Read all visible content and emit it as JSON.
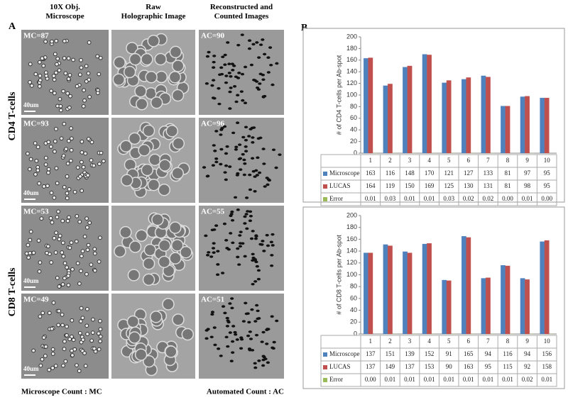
{
  "panel_a": {
    "label": "A",
    "column_headers": [
      "10X Obj.\nMicroscope",
      "Raw\nHolographic Image",
      "Reconstructed and\nCounted Images"
    ],
    "row_labels": [
      "CD4 T-cells",
      "CD8 T-cells"
    ],
    "rows": [
      {
        "microscope": "MC=87",
        "counted": "AC=90",
        "scale": "40um"
      },
      {
        "microscope": "MC=93",
        "counted": "AC=96",
        "scale": "40um"
      },
      {
        "microscope": "MC=53",
        "counted": "AC=55",
        "scale": "40um"
      },
      {
        "microscope": "MC=49",
        "counted": "AC=51",
        "scale": "40um"
      }
    ],
    "footer_left": "Microscope Count : MC",
    "footer_right": "Automated Count : AC"
  },
  "panel_b": {
    "label": "B"
  },
  "chart_data": [
    {
      "type": "bar",
      "ylabel": "# of CD4 T-cells per Ab-spot",
      "categories": [
        "1",
        "2",
        "3",
        "4",
        "5",
        "6",
        "7",
        "8",
        "9",
        "10"
      ],
      "series": [
        {
          "name": "Microscope",
          "color": "#4f81bd",
          "values": [
            163,
            116,
            148,
            170,
            121,
            127,
            133,
            81,
            97,
            95
          ]
        },
        {
          "name": "LUCAS",
          "color": "#c0504d",
          "values": [
            164,
            119,
            150,
            169,
            125,
            130,
            131,
            81,
            98,
            95
          ]
        },
        {
          "name": "Error",
          "color": "#9bbb59",
          "values": [
            0.01,
            0.03,
            0.01,
            0.01,
            0.03,
            0.02,
            0.02,
            0,
            0.01,
            0
          ],
          "value_labels": [
            "0.01",
            "0.03",
            "0.01",
            "0.01",
            "0.03",
            "0.02",
            "0.02",
            "0.00",
            "0.01",
            "0.00"
          ]
        }
      ],
      "ylim": [
        0,
        200
      ],
      "yticks": [
        0,
        20,
        40,
        60,
        80,
        100,
        120,
        140,
        160,
        180,
        200
      ],
      "grid": false
    },
    {
      "type": "bar",
      "ylabel": "# of CD8 T-cells per Ab-spot",
      "categories": [
        "1",
        "2",
        "3",
        "4",
        "5",
        "6",
        "7",
        "8",
        "9",
        "10"
      ],
      "series": [
        {
          "name": "Microscope",
          "color": "#4f81bd",
          "values": [
            137,
            151,
            139,
            152,
            91,
            165,
            94,
            116,
            94,
            156
          ]
        },
        {
          "name": "LUCAS",
          "color": "#c0504d",
          "values": [
            137,
            149,
            137,
            153,
            90,
            163,
            95,
            115,
            92,
            158
          ]
        },
        {
          "name": "Error",
          "color": "#9bbb59",
          "values": [
            0,
            0.01,
            0.01,
            0.01,
            0.01,
            0.01,
            0.01,
            0.01,
            0.02,
            0.01
          ],
          "value_labels": [
            "0.00",
            "0.01",
            "0.01",
            "0.01",
            "0.01",
            "0.01",
            "0.01",
            "0.01",
            "0.02",
            "0.01"
          ]
        }
      ],
      "ylim": [
        0,
        200
      ],
      "yticks": [
        0,
        20,
        40,
        60,
        80,
        100,
        120,
        140,
        160,
        180,
        200
      ],
      "grid": false
    }
  ]
}
